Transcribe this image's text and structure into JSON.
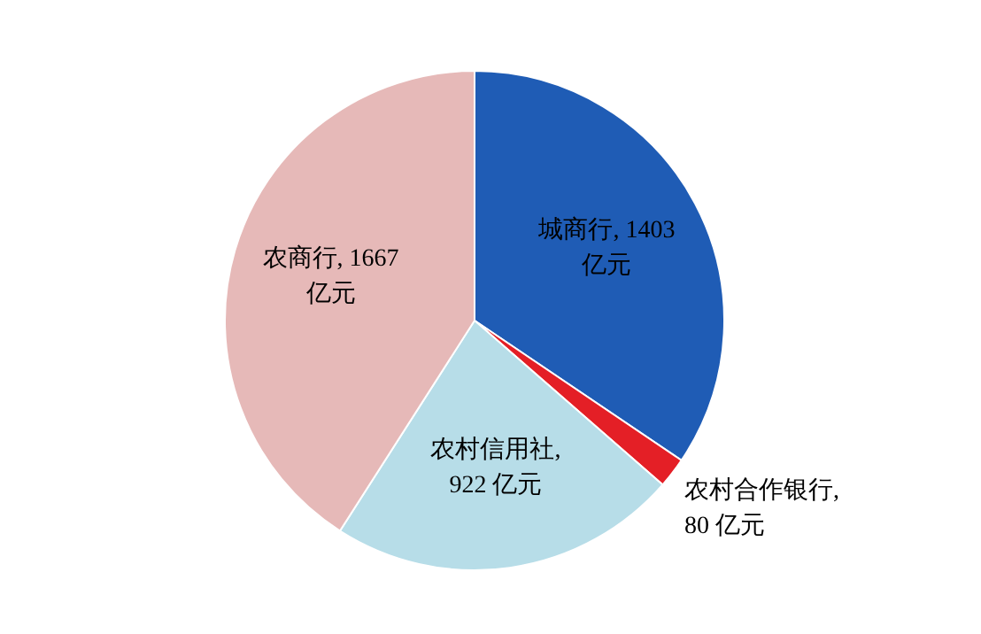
{
  "chart_data": {
    "type": "pie",
    "categories": [
      "城商行, 1403 亿元",
      "农村合作银行, 80 亿元",
      "农村信用社, 922 亿元",
      "农商行, 1667 亿元"
    ],
    "values": [
      1403,
      80,
      922,
      1667
    ],
    "colors": [
      "#1f5cb5",
      "#e41f26",
      "#b7dde8",
      "#e6b9b8"
    ]
  }
}
